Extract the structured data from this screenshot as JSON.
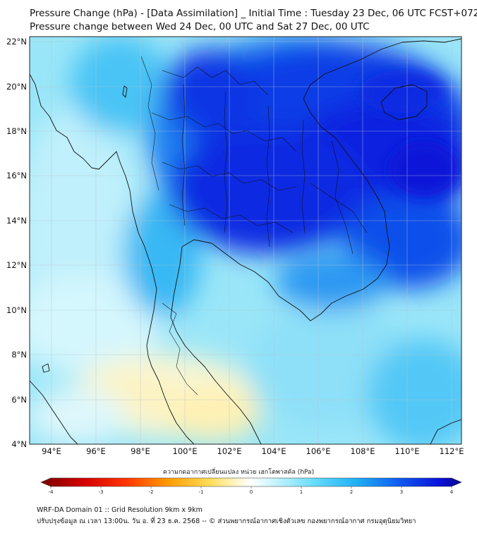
{
  "title_line1": "Pressure Change (hPa) - [Data Assimilation] _ Initial Time : Tuesday 23 Dec, 06 UTC FCST+072",
  "title_line2": "Pressure change between Wed 24 Dec, 00 UTC and Sat 27 Dec, 00 UTC",
  "lat_labels": [
    "22°N",
    "20°N",
    "18°N",
    "16°N",
    "14°N",
    "12°N",
    "10°N",
    "8°N",
    "6°N",
    "4°N"
  ],
  "lon_labels": [
    "94°E",
    "96°E",
    "98°E",
    "100°E",
    "102°E",
    "104°E",
    "106°E",
    "108°E",
    "110°E",
    "112°E"
  ],
  "colorbar": {
    "label": "ความกดอากาศเปลี่ยนแปลง หน่วย เฮกโตพาสคัล (hPa)",
    "ticks": [
      "-4",
      "-3",
      "-2",
      "-1",
      "0",
      "1",
      "2",
      "3",
      "4"
    ],
    "range": [
      -4,
      4
    ]
  },
  "footer_line1": "WRF-DA Domain 01 :: Grid Resolution 9km x 9km",
  "footer_line2": "ปรับปรุงข้อมูล ณ เวลา 13:00น. วัน อ. ที่ 23 ธ.ค. 2568 -- © ส่วนพยากรณ์อากาศเชิงตัวเลข กองพยากรณ์อากาศ กรมอุตุนิยมวิทยา",
  "colors": {
    "strong_fall": "#0a1fe0",
    "moderate_fall": "#1e8cf0",
    "weak_fall": "#7fdcf6",
    "near_zero": "#e8fbff",
    "weak_rise": "#fff1b0",
    "moderate_rise": "#fde58a"
  }
}
